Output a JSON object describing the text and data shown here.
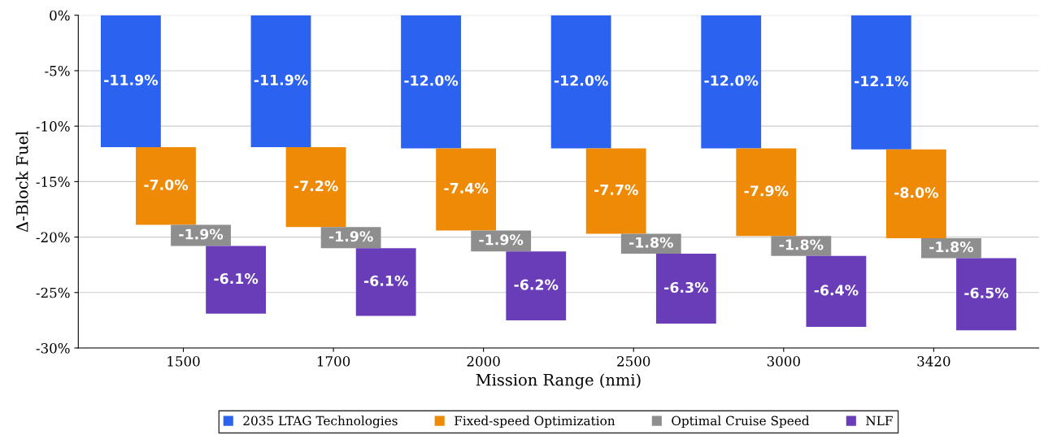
{
  "chart_data": {
    "type": "bar",
    "stacked": true,
    "xlabel": "Mission Range (nmi)",
    "ylabel": "Δ-Block Fuel",
    "categories": [
      "1500",
      "1700",
      "2000",
      "2500",
      "3000",
      "3420"
    ],
    "series": [
      {
        "name": "2035 LTAG Technologies",
        "color": "#2b63f0",
        "values": [
          -11.9,
          -11.9,
          -12.0,
          -12.0,
          -12.0,
          -12.1
        ],
        "value_labels": [
          "-11.9%",
          "-11.9%",
          "-12.0%",
          "-12.0%",
          "-12.0%",
          "-12.1%"
        ]
      },
      {
        "name": "Fixed-speed Optimization",
        "color": "#ee8a06",
        "values": [
          -7.0,
          -7.2,
          -7.4,
          -7.7,
          -7.9,
          -8.0
        ],
        "value_labels": [
          "-7.0%",
          "-7.2%",
          "-7.4%",
          "-7.7%",
          "-7.9%",
          "-8.0%"
        ]
      },
      {
        "name": "Optimal Cruise Speed",
        "color": "#8e8e8e",
        "values": [
          -1.9,
          -1.9,
          -1.9,
          -1.8,
          -1.8,
          -1.8
        ],
        "value_labels": [
          "-1.9%",
          "-1.9%",
          "-1.9%",
          "-1.8%",
          "-1.8%",
          "-1.8%"
        ]
      },
      {
        "name": "NLF",
        "color": "#6a3db8",
        "values": [
          -6.1,
          -6.1,
          -6.2,
          -6.3,
          -6.4,
          -6.5
        ],
        "value_labels": [
          "-6.1%",
          "-6.1%",
          "-6.2%",
          "-6.3%",
          "-6.4%",
          "-6.5%"
        ]
      }
    ],
    "ylim": [
      -30,
      0
    ],
    "yticks": [
      {
        "value": -30,
        "label": "-30%"
      },
      {
        "value": -25,
        "label": "-25%"
      },
      {
        "value": -20,
        "label": "-20%"
      },
      {
        "value": -15,
        "label": "-15%"
      },
      {
        "value": -10,
        "label": "-10%"
      },
      {
        "value": -5,
        "label": "-5%"
      },
      {
        "value": 0,
        "label": "0%"
      }
    ],
    "grid": "y",
    "legend": "bottom"
  }
}
